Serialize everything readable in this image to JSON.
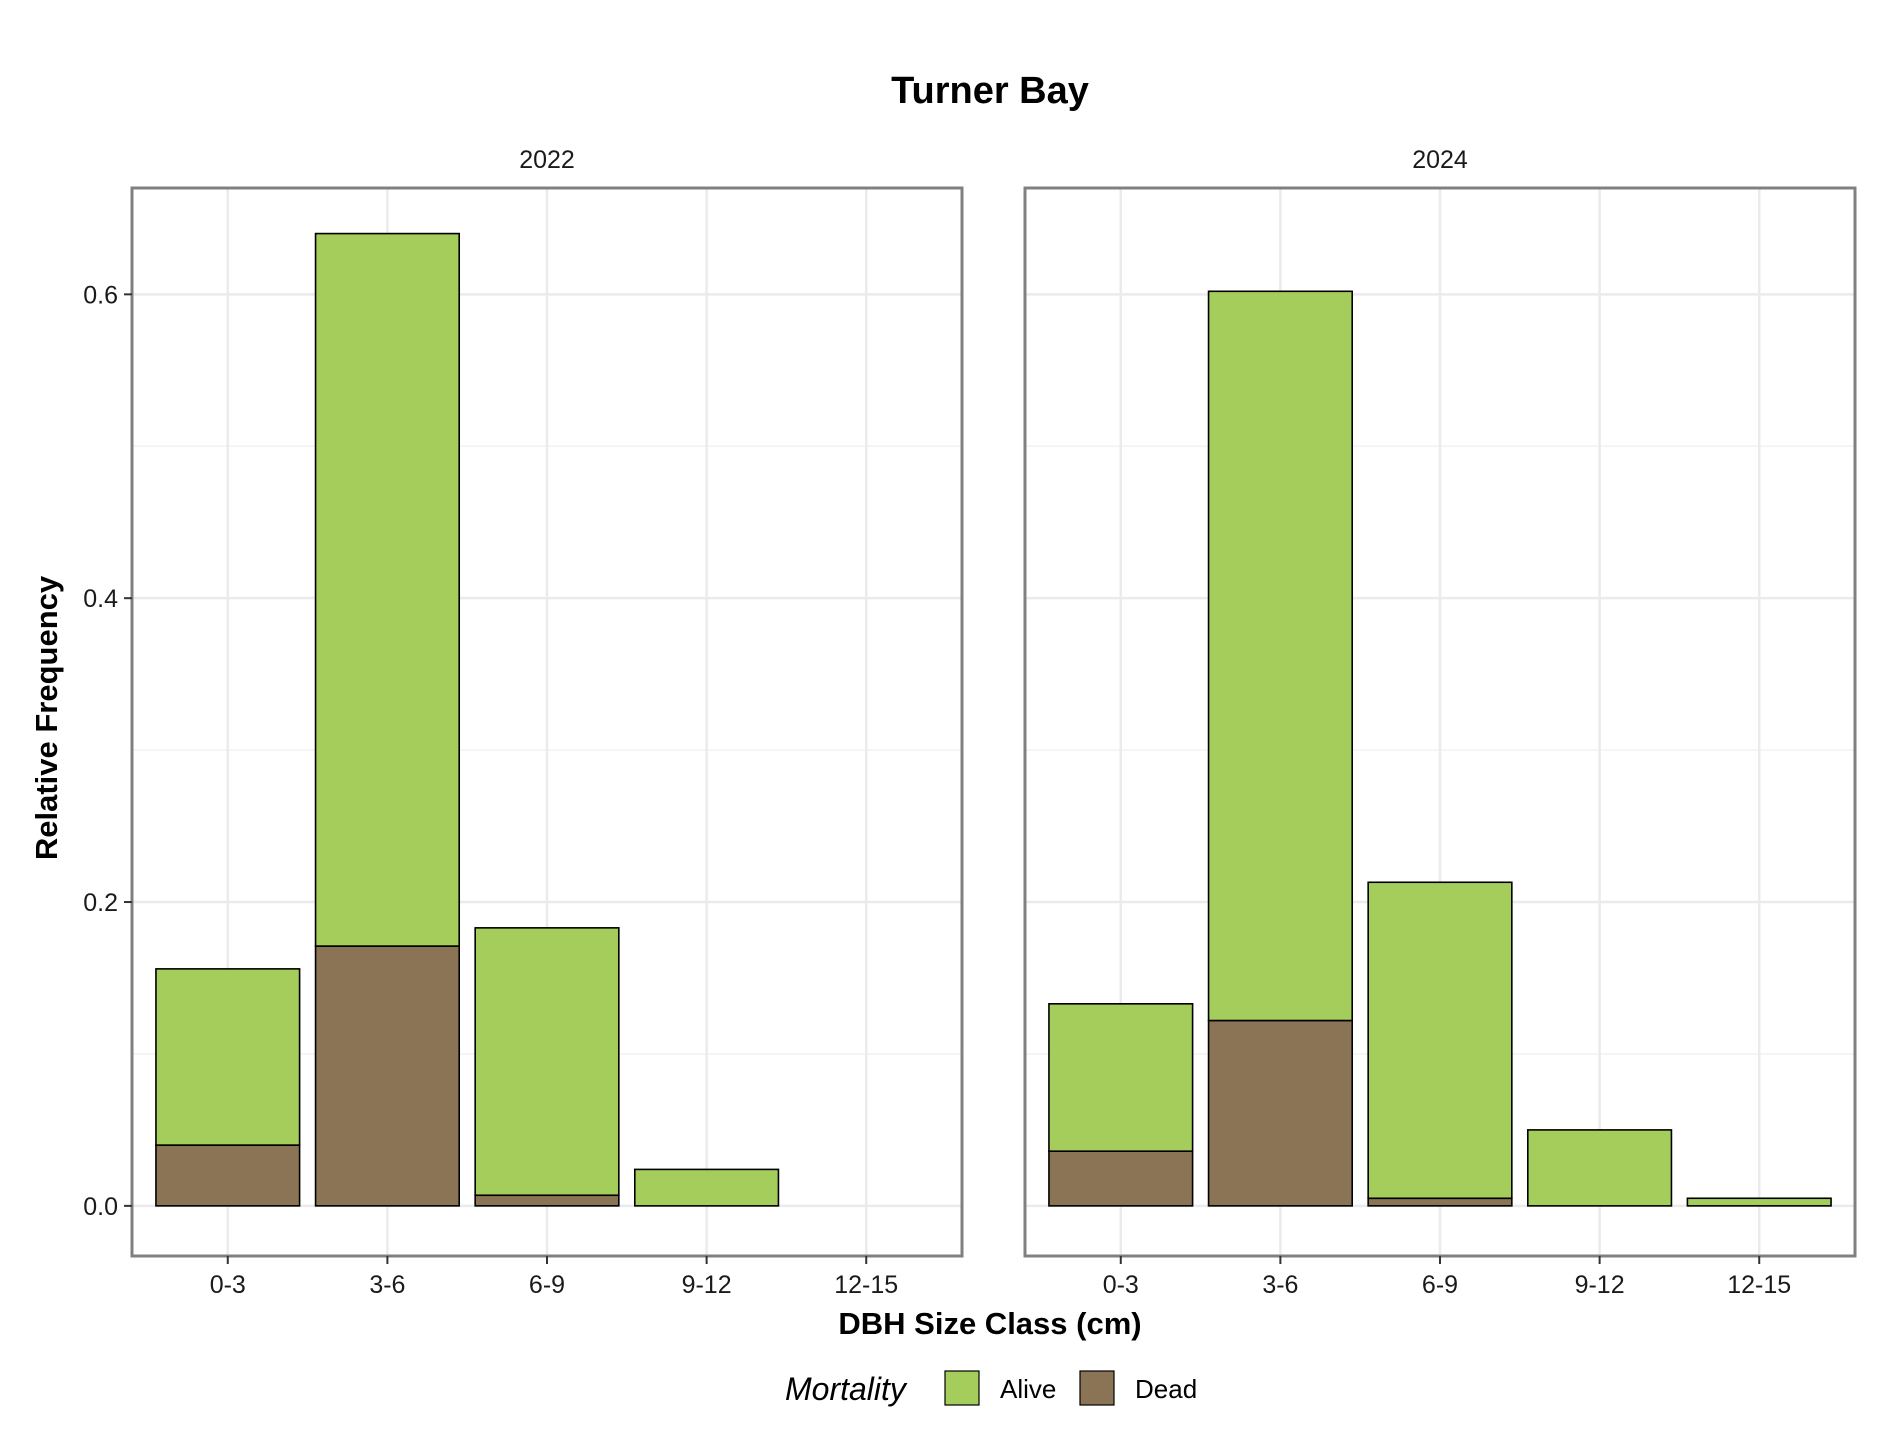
{
  "chart_data": {
    "type": "bar",
    "stacked": true,
    "title": "Turner Bay",
    "xlabel": "DBH Size Class (cm)",
    "ylabel": "Relative Frequency",
    "ylim": [
      -0.033,
      0.67
    ],
    "yticks": [
      0.0,
      0.2,
      0.4,
      0.6
    ],
    "ytick_labels": [
      "0.0",
      "0.2",
      "0.4",
      "0.6"
    ],
    "categories": [
      "0-3",
      "3-6",
      "6-9",
      "9-12",
      "12-15"
    ],
    "grid": true,
    "legend": {
      "title": "Mortality",
      "position": "bottom",
      "entries": [
        {
          "name": "Alive",
          "color": "#a5cd5c"
        },
        {
          "name": "Dead",
          "color": "#8b7455"
        }
      ]
    },
    "facets": [
      {
        "label": "2022",
        "series": [
          {
            "name": "Dead",
            "color": "#8b7455",
            "values": [
              0.04,
              0.171,
              0.007,
              0.0,
              0.0
            ]
          },
          {
            "name": "Alive",
            "color": "#a5cd5c",
            "values": [
              0.116,
              0.469,
              0.176,
              0.024,
              0.0
            ]
          }
        ]
      },
      {
        "label": "2024",
        "series": [
          {
            "name": "Dead",
            "color": "#8b7455",
            "values": [
              0.036,
              0.122,
              0.005,
              0.0,
              0.0
            ]
          },
          {
            "name": "Alive",
            "color": "#a5cd5c",
            "values": [
              0.097,
              0.48,
              0.208,
              0.05,
              0.005
            ]
          }
        ]
      }
    ]
  }
}
